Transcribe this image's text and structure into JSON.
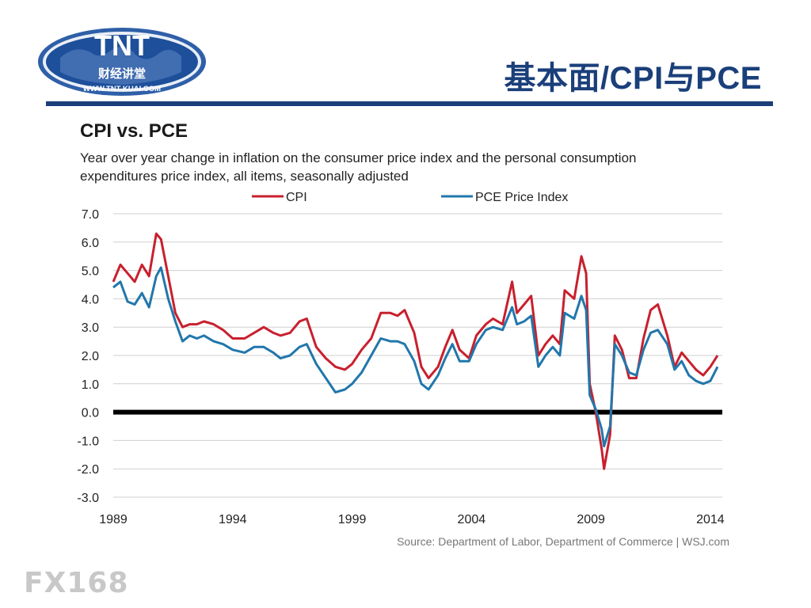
{
  "logo": {
    "name": "TNT",
    "chinese": "财经讲堂",
    "url": "WWW.TNT-KUAI.COM",
    "globe_color": "#1d4f9a",
    "oval_color": "#2f5fa8"
  },
  "slide": {
    "title": "基本面/CPI与PCE",
    "accent": "#1a3f7a"
  },
  "chart_data": {
    "type": "line",
    "title": "CPI vs. PCE",
    "subtitle": "Year over year change in inflation on the consumer price index and the personal consumption expenditures price index, all items, seasonally adjusted",
    "xlabel": "",
    "ylabel": "",
    "x_ticks": [
      "1989",
      "1994",
      "1999",
      "2004",
      "2009",
      "2014"
    ],
    "y_ticks": [
      "7.0",
      "6.0",
      "5.0",
      "4.0",
      "3.0",
      "2.0",
      "1.0",
      "0.0",
      "-1.0",
      "-2.0",
      "-3.0"
    ],
    "xlim": [
      1989,
      2014.5
    ],
    "ylim": [
      -3,
      7
    ],
    "grid": true,
    "legend_position": "top",
    "zero_line": true,
    "series": [
      {
        "name": "CPI",
        "color": "#c8202e",
        "points": [
          [
            1989.0,
            4.6
          ],
          [
            1989.3,
            5.2
          ],
          [
            1989.6,
            4.9
          ],
          [
            1989.9,
            4.6
          ],
          [
            1990.2,
            5.2
          ],
          [
            1990.5,
            4.8
          ],
          [
            1990.8,
            6.3
          ],
          [
            1991.0,
            6.1
          ],
          [
            1991.3,
            4.8
          ],
          [
            1991.6,
            3.5
          ],
          [
            1991.9,
            3.0
          ],
          [
            1992.2,
            3.1
          ],
          [
            1992.5,
            3.1
          ],
          [
            1992.8,
            3.2
          ],
          [
            1993.2,
            3.1
          ],
          [
            1993.6,
            2.9
          ],
          [
            1994.0,
            2.6
          ],
          [
            1994.5,
            2.6
          ],
          [
            1994.9,
            2.8
          ],
          [
            1995.3,
            3.0
          ],
          [
            1995.7,
            2.8
          ],
          [
            1996.0,
            2.7
          ],
          [
            1996.4,
            2.8
          ],
          [
            1996.8,
            3.2
          ],
          [
            1997.1,
            3.3
          ],
          [
            1997.5,
            2.3
          ],
          [
            1997.9,
            1.9
          ],
          [
            1998.3,
            1.6
          ],
          [
            1998.7,
            1.5
          ],
          [
            1999.0,
            1.7
          ],
          [
            1999.4,
            2.2
          ],
          [
            1999.8,
            2.6
          ],
          [
            2000.2,
            3.5
          ],
          [
            2000.6,
            3.5
          ],
          [
            2000.9,
            3.4
          ],
          [
            2001.2,
            3.6
          ],
          [
            2001.6,
            2.8
          ],
          [
            2001.9,
            1.6
          ],
          [
            2002.2,
            1.2
          ],
          [
            2002.6,
            1.6
          ],
          [
            2002.9,
            2.3
          ],
          [
            2003.2,
            2.9
          ],
          [
            2003.5,
            2.2
          ],
          [
            2003.9,
            1.9
          ],
          [
            2004.2,
            2.7
          ],
          [
            2004.6,
            3.1
          ],
          [
            2004.9,
            3.3
          ],
          [
            2005.3,
            3.1
          ],
          [
            2005.7,
            4.6
          ],
          [
            2005.9,
            3.5
          ],
          [
            2006.2,
            3.8
          ],
          [
            2006.5,
            4.1
          ],
          [
            2006.8,
            2.0
          ],
          [
            2007.1,
            2.4
          ],
          [
            2007.4,
            2.7
          ],
          [
            2007.7,
            2.4
          ],
          [
            2007.9,
            4.3
          ],
          [
            2008.3,
            4.0
          ],
          [
            2008.6,
            5.5
          ],
          [
            2008.8,
            4.9
          ],
          [
            2008.95,
            1.0
          ],
          [
            2009.2,
            0.0
          ],
          [
            2009.45,
            -1.3
          ],
          [
            2009.55,
            -2.0
          ],
          [
            2009.8,
            -0.8
          ],
          [
            2010.0,
            2.7
          ],
          [
            2010.3,
            2.2
          ],
          [
            2010.6,
            1.2
          ],
          [
            2010.9,
            1.2
          ],
          [
            2011.2,
            2.6
          ],
          [
            2011.5,
            3.6
          ],
          [
            2011.8,
            3.8
          ],
          [
            2012.2,
            2.7
          ],
          [
            2012.5,
            1.6
          ],
          [
            2012.8,
            2.1
          ],
          [
            2013.1,
            1.8
          ],
          [
            2013.4,
            1.5
          ],
          [
            2013.7,
            1.3
          ],
          [
            2014.0,
            1.6
          ],
          [
            2014.3,
            2.0
          ]
        ]
      },
      {
        "name": "PCE Price Index",
        "color": "#2177ab",
        "points": [
          [
            1989.0,
            4.4
          ],
          [
            1989.3,
            4.6
          ],
          [
            1989.6,
            3.9
          ],
          [
            1989.9,
            3.8
          ],
          [
            1990.2,
            4.2
          ],
          [
            1990.5,
            3.7
          ],
          [
            1990.8,
            4.8
          ],
          [
            1991.0,
            5.1
          ],
          [
            1991.3,
            4.0
          ],
          [
            1991.6,
            3.2
          ],
          [
            1991.9,
            2.5
          ],
          [
            1992.2,
            2.7
          ],
          [
            1992.5,
            2.6
          ],
          [
            1992.8,
            2.7
          ],
          [
            1993.2,
            2.5
          ],
          [
            1993.6,
            2.4
          ],
          [
            1994.0,
            2.2
          ],
          [
            1994.5,
            2.1
          ],
          [
            1994.9,
            2.3
          ],
          [
            1995.3,
            2.3
          ],
          [
            1995.7,
            2.1
          ],
          [
            1996.0,
            1.9
          ],
          [
            1996.4,
            2.0
          ],
          [
            1996.8,
            2.3
          ],
          [
            1997.1,
            2.4
          ],
          [
            1997.5,
            1.7
          ],
          [
            1997.9,
            1.2
          ],
          [
            1998.3,
            0.7
          ],
          [
            1998.7,
            0.8
          ],
          [
            1999.0,
            1.0
          ],
          [
            1999.4,
            1.4
          ],
          [
            1999.8,
            2.0
          ],
          [
            2000.2,
            2.6
          ],
          [
            2000.6,
            2.5
          ],
          [
            2000.9,
            2.5
          ],
          [
            2001.2,
            2.4
          ],
          [
            2001.6,
            1.8
          ],
          [
            2001.9,
            1.0
          ],
          [
            2002.2,
            0.8
          ],
          [
            2002.6,
            1.3
          ],
          [
            2002.9,
            1.9
          ],
          [
            2003.2,
            2.4
          ],
          [
            2003.5,
            1.8
          ],
          [
            2003.9,
            1.8
          ],
          [
            2004.2,
            2.4
          ],
          [
            2004.6,
            2.9
          ],
          [
            2004.9,
            3.0
          ],
          [
            2005.3,
            2.9
          ],
          [
            2005.7,
            3.7
          ],
          [
            2005.9,
            3.1
          ],
          [
            2006.2,
            3.2
          ],
          [
            2006.5,
            3.4
          ],
          [
            2006.8,
            1.6
          ],
          [
            2007.1,
            2.0
          ],
          [
            2007.4,
            2.3
          ],
          [
            2007.7,
            2.0
          ],
          [
            2007.9,
            3.5
          ],
          [
            2008.3,
            3.3
          ],
          [
            2008.6,
            4.1
          ],
          [
            2008.8,
            3.6
          ],
          [
            2008.95,
            0.6
          ],
          [
            2009.2,
            0.1
          ],
          [
            2009.45,
            -0.6
          ],
          [
            2009.55,
            -1.2
          ],
          [
            2009.8,
            -0.5
          ],
          [
            2010.0,
            2.4
          ],
          [
            2010.3,
            2.0
          ],
          [
            2010.6,
            1.4
          ],
          [
            2010.9,
            1.3
          ],
          [
            2011.2,
            2.2
          ],
          [
            2011.5,
            2.8
          ],
          [
            2011.8,
            2.9
          ],
          [
            2012.2,
            2.4
          ],
          [
            2012.5,
            1.5
          ],
          [
            2012.8,
            1.8
          ],
          [
            2013.1,
            1.3
          ],
          [
            2013.4,
            1.1
          ],
          [
            2013.7,
            1.0
          ],
          [
            2014.0,
            1.1
          ],
          [
            2014.3,
            1.6
          ]
        ]
      }
    ],
    "source": "Source: Department of Labor, Department of Commerce | WSJ.com"
  },
  "watermark": "FX168"
}
